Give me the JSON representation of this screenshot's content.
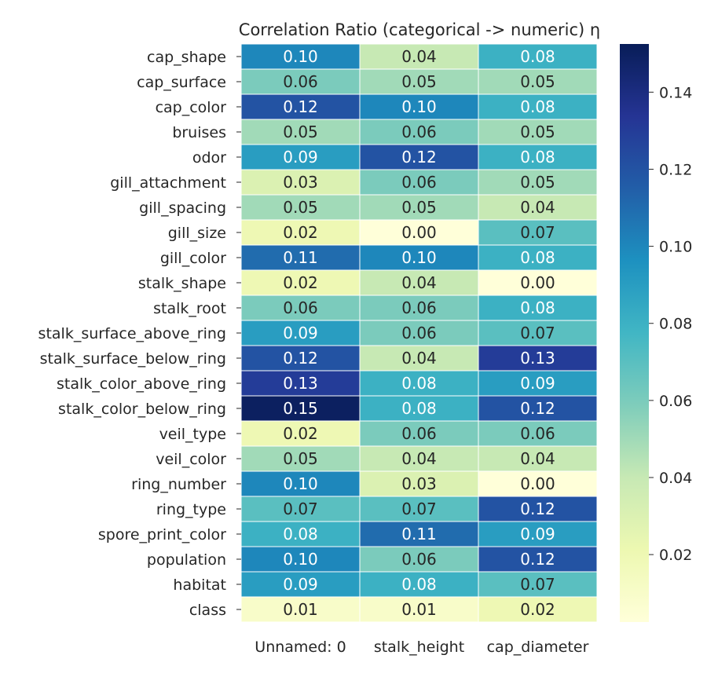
{
  "chart_data": {
    "type": "heatmap",
    "title": "Correlation Ratio (categorical -> numeric) η",
    "columns": [
      "Unnamed: 0",
      "stalk_height",
      "cap_diameter"
    ],
    "rows": [
      "cap_shape",
      "cap_surface",
      "cap_color",
      "bruises",
      "odor",
      "gill_attachment",
      "gill_spacing",
      "gill_size",
      "gill_color",
      "stalk_shape",
      "stalk_root",
      "stalk_surface_above_ring",
      "stalk_surface_below_ring",
      "stalk_color_above_ring",
      "stalk_color_below_ring",
      "veil_type",
      "veil_color",
      "ring_number",
      "ring_type",
      "spore_print_color",
      "population",
      "habitat",
      "class"
    ],
    "values": [
      [
        0.1,
        0.04,
        0.08
      ],
      [
        0.06,
        0.05,
        0.05
      ],
      [
        0.12,
        0.1,
        0.08
      ],
      [
        0.05,
        0.06,
        0.05
      ],
      [
        0.09,
        0.12,
        0.08
      ],
      [
        0.03,
        0.06,
        0.05
      ],
      [
        0.05,
        0.05,
        0.04
      ],
      [
        0.02,
        0.0,
        0.07
      ],
      [
        0.11,
        0.1,
        0.08
      ],
      [
        0.02,
        0.04,
        0.0
      ],
      [
        0.06,
        0.06,
        0.08
      ],
      [
        0.09,
        0.06,
        0.07
      ],
      [
        0.12,
        0.04,
        0.13
      ],
      [
        0.13,
        0.08,
        0.09
      ],
      [
        0.15,
        0.08,
        0.12
      ],
      [
        0.02,
        0.06,
        0.06
      ],
      [
        0.05,
        0.04,
        0.04
      ],
      [
        0.1,
        0.03,
        0.0
      ],
      [
        0.07,
        0.07,
        0.12
      ],
      [
        0.08,
        0.11,
        0.09
      ],
      [
        0.1,
        0.06,
        0.12
      ],
      [
        0.09,
        0.08,
        0.07
      ],
      [
        0.01,
        0.01,
        0.02
      ]
    ],
    "value_format": "2 decimals",
    "colormap": "YlGnBu",
    "colorbar": {
      "range": [
        0.0025,
        0.1525
      ],
      "ticks": [
        0.02,
        0.04,
        0.06,
        0.08,
        0.1,
        0.12,
        0.14
      ],
      "tick_labels": [
        "0.02",
        "0.04",
        "0.06",
        "0.08",
        "0.10",
        "0.12",
        "0.14"
      ]
    }
  }
}
